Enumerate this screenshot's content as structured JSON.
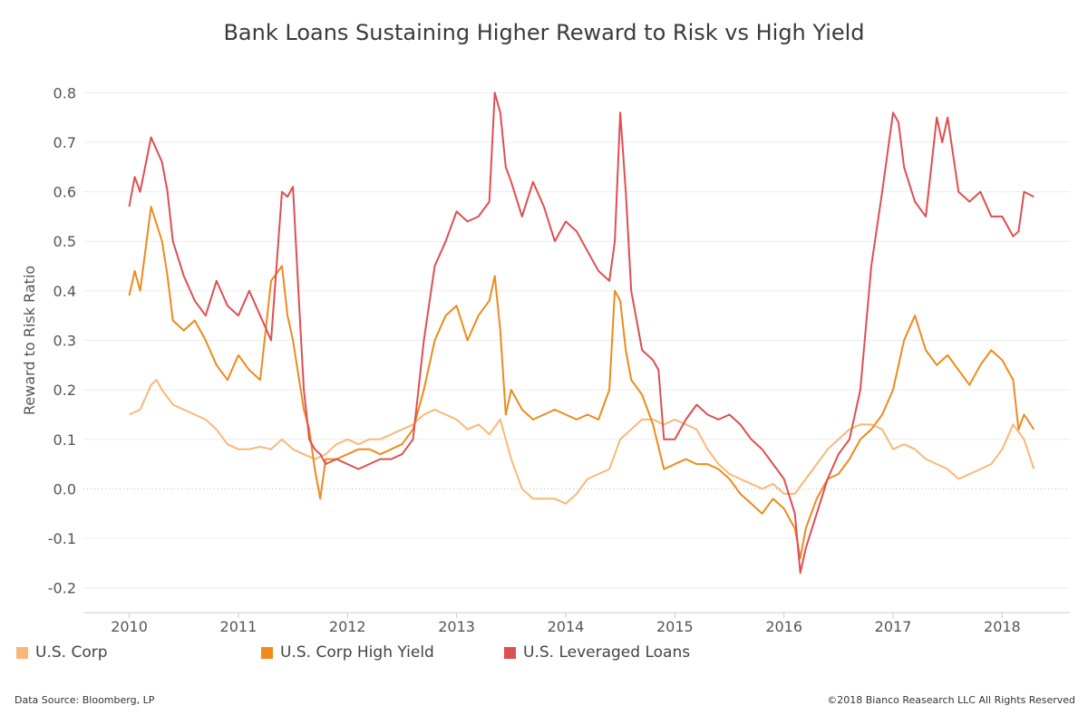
{
  "chart_data": {
    "type": "line",
    "title": "Bank Loans Sustaining Higher Reward to Risk vs High Yield",
    "ylabel": "Reward to Risk Ratio",
    "xlabel": "",
    "xlim": [
      2009.58,
      2018.62
    ],
    "ylim": [
      -0.25,
      0.85
    ],
    "xticks": [
      "2010",
      "2011",
      "2012",
      "2013",
      "2014",
      "2015",
      "2016",
      "2017",
      "2018"
    ],
    "yticks": [
      "0.8",
      "0.7",
      "0.6",
      "0.5",
      "0.4",
      "0.3",
      "0.2",
      "0.1",
      "0.0",
      "-0.1",
      "-0.2"
    ],
    "zero_line": "dotted",
    "grid": "horizontal",
    "legend_position": "bottom",
    "series": [
      {
        "name": "U.S. Corp",
        "color": "#f8b878",
        "x": [
          2010.0,
          2010.1,
          2010.2,
          2010.25,
          2010.3,
          2010.4,
          2010.5,
          2010.6,
          2010.7,
          2010.8,
          2010.9,
          2011.0,
          2011.1,
          2011.2,
          2011.3,
          2011.4,
          2011.5,
          2011.6,
          2011.7,
          2011.8,
          2011.9,
          2012.0,
          2012.1,
          2012.2,
          2012.3,
          2012.4,
          2012.5,
          2012.6,
          2012.7,
          2012.8,
          2012.9,
          2013.0,
          2013.1,
          2013.2,
          2013.3,
          2013.4,
          2013.5,
          2013.6,
          2013.7,
          2013.8,
          2013.9,
          2014.0,
          2014.1,
          2014.2,
          2014.3,
          2014.4,
          2014.5,
          2014.6,
          2014.7,
          2014.8,
          2014.9,
          2015.0,
          2015.1,
          2015.2,
          2015.3,
          2015.4,
          2015.5,
          2015.6,
          2015.7,
          2015.8,
          2015.9,
          2016.0,
          2016.1,
          2016.2,
          2016.3,
          2016.4,
          2016.5,
          2016.6,
          2016.7,
          2016.8,
          2016.9,
          2017.0,
          2017.1,
          2017.2,
          2017.3,
          2017.4,
          2017.5,
          2017.6,
          2017.7,
          2017.8,
          2017.9,
          2018.0,
          2018.1,
          2018.2,
          2018.29
        ],
        "y": [
          0.15,
          0.16,
          0.21,
          0.22,
          0.2,
          0.17,
          0.16,
          0.15,
          0.14,
          0.12,
          0.09,
          0.08,
          0.08,
          0.085,
          0.08,
          0.1,
          0.08,
          0.07,
          0.06,
          0.07,
          0.09,
          0.1,
          0.09,
          0.1,
          0.1,
          0.11,
          0.12,
          0.13,
          0.15,
          0.16,
          0.15,
          0.14,
          0.12,
          0.13,
          0.11,
          0.14,
          0.06,
          0.0,
          -0.02,
          -0.02,
          -0.02,
          -0.03,
          -0.01,
          0.02,
          0.03,
          0.04,
          0.1,
          0.12,
          0.14,
          0.14,
          0.13,
          0.14,
          0.13,
          0.12,
          0.08,
          0.05,
          0.03,
          0.02,
          0.01,
          0.0,
          0.01,
          -0.01,
          -0.01,
          0.02,
          0.05,
          0.08,
          0.1,
          0.12,
          0.13,
          0.13,
          0.12,
          0.08,
          0.09,
          0.08,
          0.06,
          0.05,
          0.04,
          0.02,
          0.03,
          0.04,
          0.05,
          0.08,
          0.13,
          0.1,
          0.04
        ]
      },
      {
        "name": "U.S. Corp High Yield",
        "color": "#ee8a1e",
        "x": [
          2010.0,
          2010.05,
          2010.1,
          2010.2,
          2010.3,
          2010.35,
          2010.4,
          2010.5,
          2010.6,
          2010.7,
          2010.8,
          2010.9,
          2011.0,
          2011.1,
          2011.2,
          2011.3,
          2011.4,
          2011.45,
          2011.5,
          2011.6,
          2011.65,
          2011.7,
          2011.75,
          2011.8,
          2011.9,
          2012.0,
          2012.1,
          2012.2,
          2012.3,
          2012.4,
          2012.5,
          2012.6,
          2012.7,
          2012.8,
          2012.9,
          2013.0,
          2013.1,
          2013.2,
          2013.3,
          2013.35,
          2013.4,
          2013.45,
          2013.5,
          2013.6,
          2013.7,
          2013.8,
          2013.9,
          2014.0,
          2014.1,
          2014.2,
          2014.3,
          2014.4,
          2014.45,
          2014.5,
          2014.55,
          2014.6,
          2014.7,
          2014.8,
          2014.9,
          2015.0,
          2015.1,
          2015.2,
          2015.3,
          2015.4,
          2015.5,
          2015.6,
          2015.7,
          2015.8,
          2015.9,
          2016.0,
          2016.1,
          2016.15,
          2016.2,
          2016.3,
          2016.4,
          2016.5,
          2016.6,
          2016.7,
          2016.8,
          2016.9,
          2017.0,
          2017.1,
          2017.2,
          2017.3,
          2017.4,
          2017.5,
          2017.6,
          2017.7,
          2017.8,
          2017.9,
          2018.0,
          2018.1,
          2018.15,
          2018.2,
          2018.29
        ],
        "y": [
          0.39,
          0.44,
          0.4,
          0.57,
          0.5,
          0.43,
          0.34,
          0.32,
          0.34,
          0.3,
          0.25,
          0.22,
          0.27,
          0.24,
          0.22,
          0.42,
          0.45,
          0.35,
          0.3,
          0.16,
          0.12,
          0.04,
          -0.02,
          0.06,
          0.06,
          0.07,
          0.08,
          0.08,
          0.07,
          0.08,
          0.09,
          0.12,
          0.2,
          0.3,
          0.35,
          0.37,
          0.3,
          0.35,
          0.38,
          0.43,
          0.32,
          0.15,
          0.2,
          0.16,
          0.14,
          0.15,
          0.16,
          0.15,
          0.14,
          0.15,
          0.14,
          0.2,
          0.4,
          0.38,
          0.28,
          0.22,
          0.19,
          0.13,
          0.04,
          0.05,
          0.06,
          0.05,
          0.05,
          0.04,
          0.02,
          -0.01,
          -0.03,
          -0.05,
          -0.02,
          -0.04,
          -0.08,
          -0.14,
          -0.08,
          -0.02,
          0.02,
          0.03,
          0.06,
          0.1,
          0.12,
          0.15,
          0.2,
          0.3,
          0.35,
          0.28,
          0.25,
          0.27,
          0.24,
          0.21,
          0.25,
          0.28,
          0.26,
          0.22,
          0.12,
          0.15,
          0.12
        ]
      },
      {
        "name": "U.S. Leveraged Loans",
        "color": "#de4f51",
        "x": [
          2010.0,
          2010.05,
          2010.1,
          2010.2,
          2010.3,
          2010.35,
          2010.4,
          2010.5,
          2010.6,
          2010.7,
          2010.8,
          2010.9,
          2011.0,
          2011.1,
          2011.2,
          2011.3,
          2011.4,
          2011.45,
          2011.5,
          2011.55,
          2011.6,
          2011.65,
          2011.7,
          2011.75,
          2011.8,
          2011.9,
          2012.0,
          2012.1,
          2012.2,
          2012.3,
          2012.4,
          2012.5,
          2012.6,
          2012.7,
          2012.8,
          2012.9,
          2013.0,
          2013.1,
          2013.2,
          2013.3,
          2013.35,
          2013.4,
          2013.45,
          2013.5,
          2013.6,
          2013.7,
          2013.8,
          2013.9,
          2014.0,
          2014.1,
          2014.2,
          2014.3,
          2014.4,
          2014.45,
          2014.5,
          2014.55,
          2014.6,
          2014.7,
          2014.8,
          2014.85,
          2014.9,
          2015.0,
          2015.1,
          2015.2,
          2015.3,
          2015.4,
          2015.5,
          2015.6,
          2015.7,
          2015.8,
          2015.9,
          2016.0,
          2016.1,
          2016.15,
          2016.2,
          2016.3,
          2016.4,
          2016.5,
          2016.6,
          2016.7,
          2016.8,
          2016.9,
          2017.0,
          2017.05,
          2017.1,
          2017.2,
          2017.3,
          2017.4,
          2017.45,
          2017.5,
          2017.6,
          2017.7,
          2017.8,
          2017.9,
          2018.0,
          2018.1,
          2018.15,
          2018.2,
          2018.29
        ],
        "y": [
          0.57,
          0.63,
          0.6,
          0.71,
          0.66,
          0.6,
          0.5,
          0.43,
          0.38,
          0.35,
          0.42,
          0.37,
          0.35,
          0.4,
          0.35,
          0.3,
          0.6,
          0.59,
          0.61,
          0.4,
          0.2,
          0.1,
          0.08,
          0.07,
          0.05,
          0.06,
          0.05,
          0.04,
          0.05,
          0.06,
          0.06,
          0.07,
          0.1,
          0.3,
          0.45,
          0.5,
          0.56,
          0.54,
          0.55,
          0.58,
          0.8,
          0.76,
          0.65,
          0.62,
          0.55,
          0.62,
          0.57,
          0.5,
          0.54,
          0.52,
          0.48,
          0.44,
          0.42,
          0.5,
          0.76,
          0.6,
          0.4,
          0.28,
          0.26,
          0.24,
          0.1,
          0.1,
          0.14,
          0.17,
          0.15,
          0.14,
          0.15,
          0.13,
          0.1,
          0.08,
          0.05,
          0.02,
          -0.05,
          -0.17,
          -0.12,
          -0.05,
          0.02,
          0.07,
          0.1,
          0.2,
          0.45,
          0.6,
          0.76,
          0.74,
          0.65,
          0.58,
          0.55,
          0.75,
          0.7,
          0.75,
          0.6,
          0.58,
          0.6,
          0.55,
          0.55,
          0.51,
          0.52,
          0.6,
          0.59
        ]
      }
    ]
  },
  "legend": [
    {
      "label": "U.S. Corp",
      "color": "#f8b878"
    },
    {
      "label": "U.S. Corp High Yield",
      "color": "#ee8a1e"
    },
    {
      "label": "U.S. Leveraged Loans",
      "color": "#de4f51"
    }
  ],
  "footer": {
    "source": "Data Source: Bloomberg, LP",
    "copyright": "©2018 Bianco Reasearch LLC  All Rights Reserved"
  }
}
